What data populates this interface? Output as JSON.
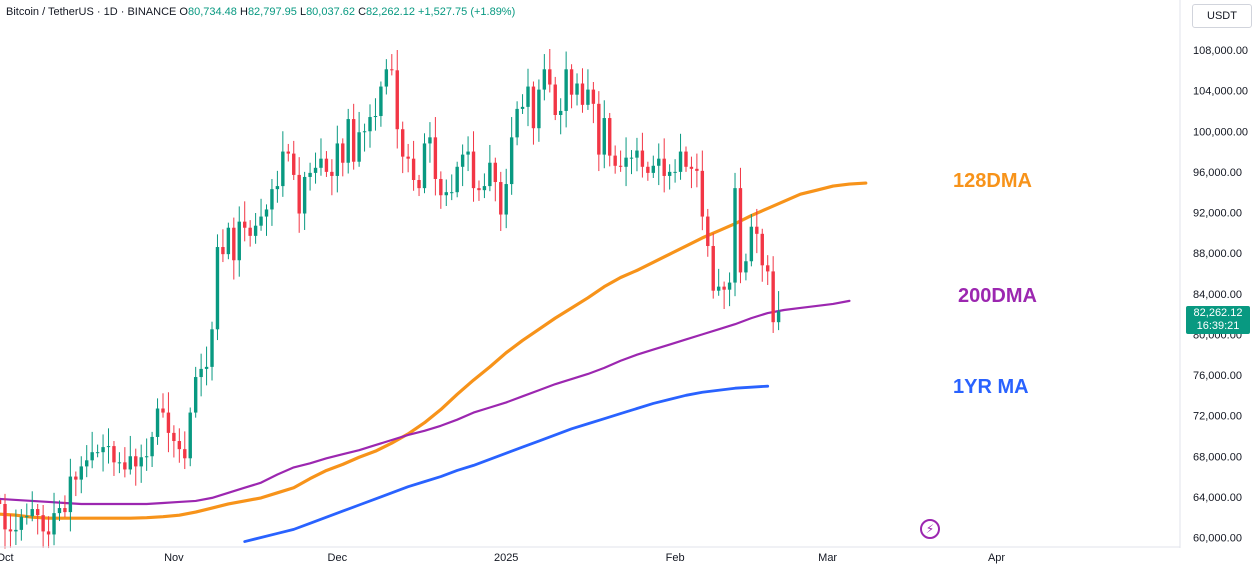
{
  "header": {
    "symbol": "Bitcoin / TetherUS · 1D · BINANCE",
    "o_label": "O",
    "o_value": "80,734.48",
    "h_label": "H",
    "h_value": "82,797.95",
    "l_label": "L",
    "l_value": "80,037.62",
    "c_label": "C",
    "c_value": "82,262.12",
    "change": "+1,527.75 (+1.89%)"
  },
  "currency": "USDT",
  "last_price": {
    "price": "82,262.12",
    "countdown": "16:39:21"
  },
  "colors": {
    "up": "#089981",
    "down": "#f23645",
    "ma128": "#f7931a",
    "ma200": "#9c27b0",
    "ma1yr": "#2962ff",
    "tag": "#089981"
  },
  "icons": {
    "replay": "lightning-icon"
  },
  "chart_data": {
    "type": "candlestick",
    "ylim": [
      59000,
      111000
    ],
    "yticks": [
      "108,000.00",
      "104,000.00",
      "100,000.00",
      "96,000.00",
      "92,000.00",
      "88,000.00",
      "84,000.00",
      "80,000.00",
      "76,000.00",
      "72,000.00",
      "68,000.00",
      "64,000.00",
      "60,000.00"
    ],
    "ytick_values": [
      108000,
      104000,
      100000,
      96000,
      92000,
      88000,
      84000,
      80000,
      76000,
      72000,
      68000,
      64000,
      60000
    ],
    "xticks": [
      {
        "label": "Oct",
        "date": "2024-10-01"
      },
      {
        "label": "Nov",
        "date": "2024-11-01"
      },
      {
        "label": "Dec",
        "date": "2024-12-01"
      },
      {
        "label": "2025",
        "date": "2025-01-01"
      },
      {
        "label": "Feb",
        "date": "2025-02-01"
      },
      {
        "label": "Mar",
        "date": "2025-03-01"
      },
      {
        "label": "Apr",
        "date": "2025-04-01"
      }
    ],
    "x_range": [
      "2024-10-01",
      "2025-04-11"
    ],
    "candles_start": "2024-09-30",
    "closes": [
      63300,
      60800,
      60600,
      60750,
      62050,
      62100,
      62800,
      62200,
      60600,
      60300,
      62400,
      62900,
      62500,
      66000,
      65700,
      67000,
      67600,
      68400,
      68400,
      68900,
      69000,
      67400,
      67400,
      66700,
      68000,
      67000,
      67900,
      68000,
      69900,
      72700,
      72300,
      70300,
      69500,
      68700,
      67800,
      72300,
      75800,
      76600,
      76800,
      80500,
      88600,
      87900,
      90500,
      87300,
      91100,
      90500,
      89700,
      90700,
      91600,
      92300,
      94300,
      94600,
      98000,
      97800,
      95700,
      91900,
      95500,
      95900,
      96400,
      97300,
      96000,
      95600,
      98800,
      96900,
      101200,
      97000,
      99900,
      100000,
      101400,
      101500,
      104400,
      106100,
      106000,
      100200,
      97500,
      97300,
      95200,
      94400,
      98800,
      99400,
      95300,
      93700,
      94000,
      94000,
      96500,
      97700,
      98000,
      94400,
      94200,
      94600,
      96900,
      95000,
      91800,
      94800,
      99400,
      102200,
      102400,
      104400,
      100300,
      104100,
      106100,
      104600,
      101600,
      102000,
      106100,
      103600,
      104700,
      102600,
      104100,
      102700,
      97700,
      101300,
      97600,
      96600,
      96500,
      97400,
      97400,
      98100,
      96500,
      95900,
      96600,
      97300,
      95600,
      96000,
      96000,
      98000,
      96500,
      96300,
      96100,
      91600,
      88700,
      84300,
      84700,
      84400,
      85100,
      94400,
      86100,
      87200,
      90600,
      89900,
      86800,
      86200,
      81200,
      82262
    ],
    "ma_series": [
      {
        "name": "128DMA",
        "start": "2024-09-30",
        "values": [
          62300,
          62200,
          62000,
          61900,
          61900,
          61900,
          61900,
          61900,
          61900,
          61950,
          62050,
          62200,
          62500,
          62900,
          63300,
          63600,
          63900,
          64400,
          64900,
          65800,
          66600,
          67200,
          67900,
          68500,
          69300,
          70200,
          71300,
          72600,
          74100,
          75500,
          76800,
          78200,
          79400,
          80500,
          81600,
          82600,
          83600,
          84700,
          85600,
          86300,
          87100,
          87900,
          88700,
          89500,
          90200,
          90900,
          91700,
          92400,
          93100,
          93800,
          94200,
          94600,
          94800,
          94900
        ]
      },
      {
        "name": "200DMA",
        "start": "2024-09-30",
        "values": [
          63800,
          63700,
          63600,
          63500,
          63400,
          63300,
          63300,
          63300,
          63300,
          63300,
          63400,
          63500,
          63600,
          63900,
          64400,
          64900,
          65400,
          66200,
          66900,
          67300,
          67800,
          68200,
          68600,
          69100,
          69600,
          70100,
          70500,
          71000,
          71600,
          72300,
          72800,
          73300,
          73900,
          74500,
          75100,
          75600,
          76100,
          76700,
          77400,
          78000,
          78500,
          79000,
          79500,
          80000,
          80500,
          81000,
          81600,
          82100,
          82400,
          82600,
          82800,
          83000,
          83300
        ]
      },
      {
        "name": "1YR MA",
        "start": "2024-11-14",
        "values": [
          59600,
          60000,
          60400,
          60800,
          61400,
          62000,
          62600,
          63200,
          63800,
          64400,
          65000,
          65500,
          66000,
          66600,
          67100,
          67700,
          68300,
          68900,
          69500,
          70100,
          70700,
          71200,
          71700,
          72200,
          72700,
          73200,
          73600,
          74000,
          74300,
          74500,
          74700,
          74800,
          74900
        ]
      }
    ],
    "ma_labels": [
      "128DMA",
      "200DMA",
      "1YR MA"
    ]
  }
}
